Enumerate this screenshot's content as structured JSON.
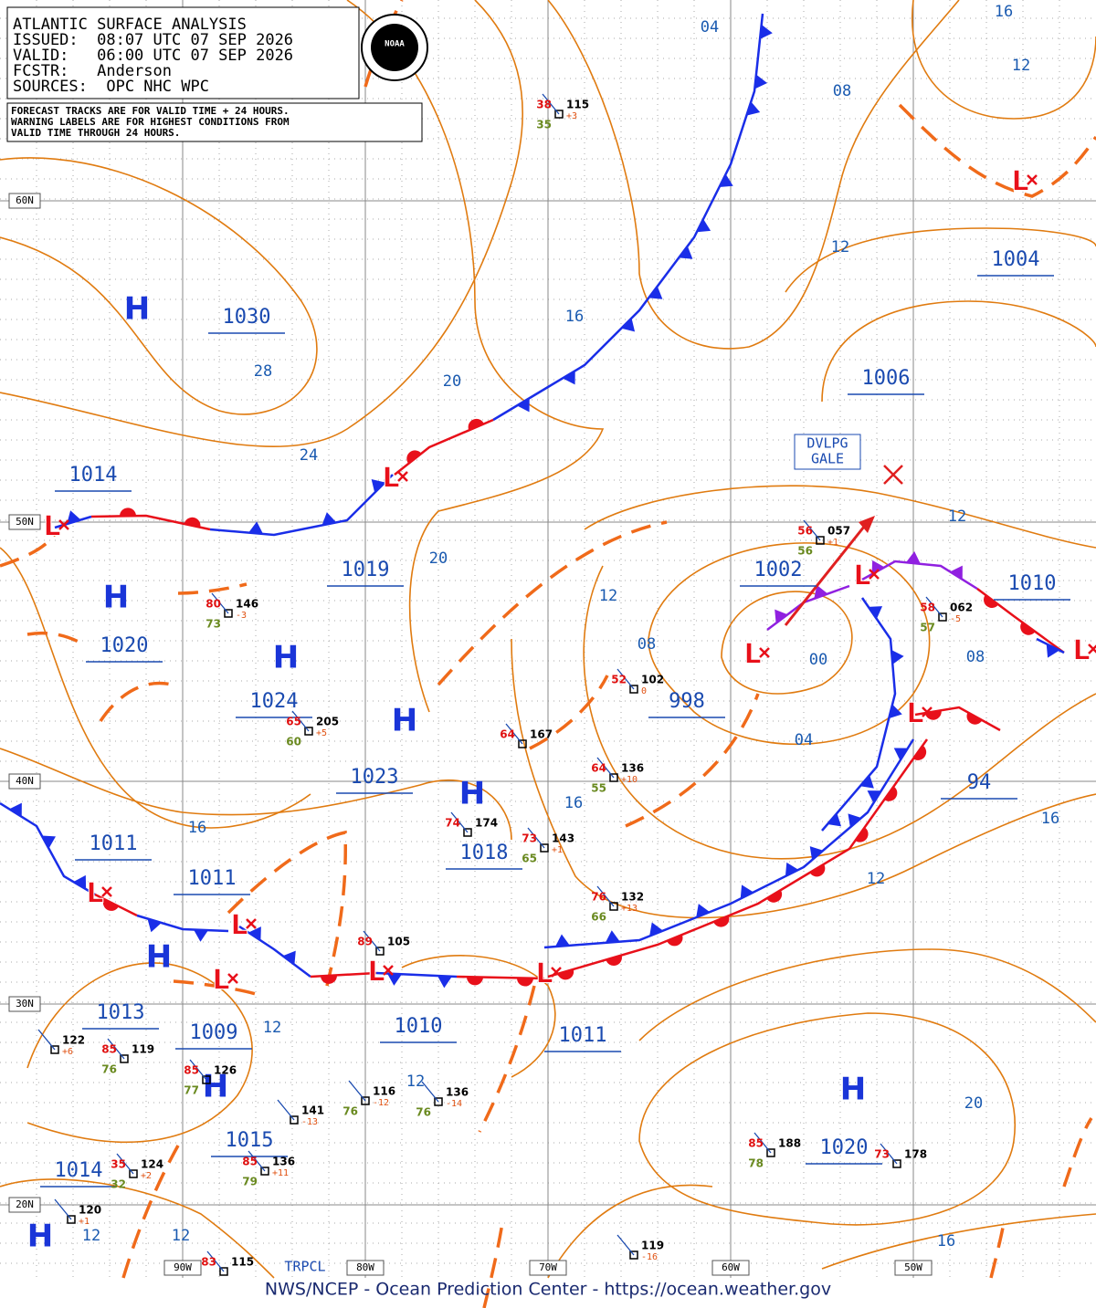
{
  "header": {
    "lines": [
      "ATLANTIC SURFACE ANALYSIS",
      "ISSUED:  08:07 UTC 07 SEP 2026",
      "VALID:   06:00 UTC 07 SEP 2026",
      "FCSTR:   Anderson",
      "SOURCES:  OPC NHC WPC"
    ]
  },
  "note": {
    "lines": [
      "FORECAST TRACKS ARE FOR VALID TIME + 24 HOURS.",
      "WARNING LABELS ARE FOR HIGHEST CONDITIONS FROM",
      "VALID TIME THROUGH 24 HOURS."
    ]
  },
  "logo": "NOAA",
  "high_symbol": "H",
  "low_symbol": "L",
  "pressure_labels": [
    "1030",
    "1014",
    "1019",
    "1020",
    "1024",
    "1023",
    "1011",
    "1011",
    "1013",
    "1009",
    "1015",
    "1014",
    "1018",
    "1010",
    "1011",
    "1002",
    "998",
    "1010",
    "1004",
    "1006",
    "94",
    "1020"
  ],
  "isobar_labels": [
    "04",
    "16",
    "12",
    "08",
    "12",
    "16",
    "28",
    "20",
    "24",
    "20",
    "12",
    "12",
    "08",
    "00",
    "08",
    "04",
    "16",
    "16",
    "16",
    "12",
    "12",
    "12",
    "20",
    "12",
    "12",
    "16"
  ],
  "latitude_labels": [
    "60N",
    "50N",
    "40N",
    "30N",
    "20N"
  ],
  "longitude_labels": [
    "90W",
    "80W",
    "70W",
    "60W",
    "50W"
  ],
  "warning_label": [
    "DVLPG",
    "GALE"
  ],
  "tropical_label": "TRPCL",
  "stations": [
    {
      "pressure": "115",
      "temp": "38",
      "dew": "35",
      "tend": "+3"
    },
    {
      "pressure": "057",
      "temp": "56",
      "dew": "56",
      "tend": "+1"
    },
    {
      "pressure": "146",
      "temp": "80",
      "dew": "73",
      "tend": "-3"
    },
    {
      "pressure": "205",
      "temp": "65",
      "dew": "60",
      "tend": "+5"
    },
    {
      "pressure": "167",
      "temp": "64"
    },
    {
      "pressure": "136",
      "temp": "64",
      "dew": "55",
      "tend": "+10"
    },
    {
      "pressure": "102",
      "temp": "52",
      "tend": "0"
    },
    {
      "pressure": "143",
      "temp": "73",
      "dew": "65",
      "tend": "+1"
    },
    {
      "pressure": "132",
      "temp": "76",
      "dew": "66",
      "tend": "+13"
    },
    {
      "pressure": "174",
      "temp": "74"
    },
    {
      "pressure": "105",
      "temp": "89"
    },
    {
      "pressure": "062",
      "temp": "58",
      "dew": "57",
      "tend": "-5"
    },
    {
      "pressure": "188",
      "temp": "85",
      "dew": "78"
    },
    {
      "pressure": "178",
      "temp": "73"
    },
    {
      "pressure": "119",
      "temp": "85",
      "dew": "76"
    },
    {
      "pressure": "126",
      "temp": "85",
      "dew": "77"
    },
    {
      "pressure": "122",
      "tend": "+6"
    },
    {
      "pressure": "124",
      "temp": "35",
      "dew": "32",
      "tend": "+2"
    },
    {
      "pressure": "120",
      "tend": "+1"
    },
    {
      "pressure": "141",
      "tend": "-13"
    },
    {
      "pressure": "136",
      "temp": "85",
      "dew": "79",
      "tend": "+11"
    },
    {
      "pressure": "116",
      "dew": "76",
      "tend": "-12"
    },
    {
      "pressure": "136",
      "dew": "76",
      "tend": "-14"
    },
    {
      "pressure": "119",
      "tend": "-16"
    },
    {
      "pressure": "115",
      "temp": "83"
    }
  ],
  "footer": "NWS/NCEP - Ocean Prediction Center - https://ocean.weather.gov"
}
